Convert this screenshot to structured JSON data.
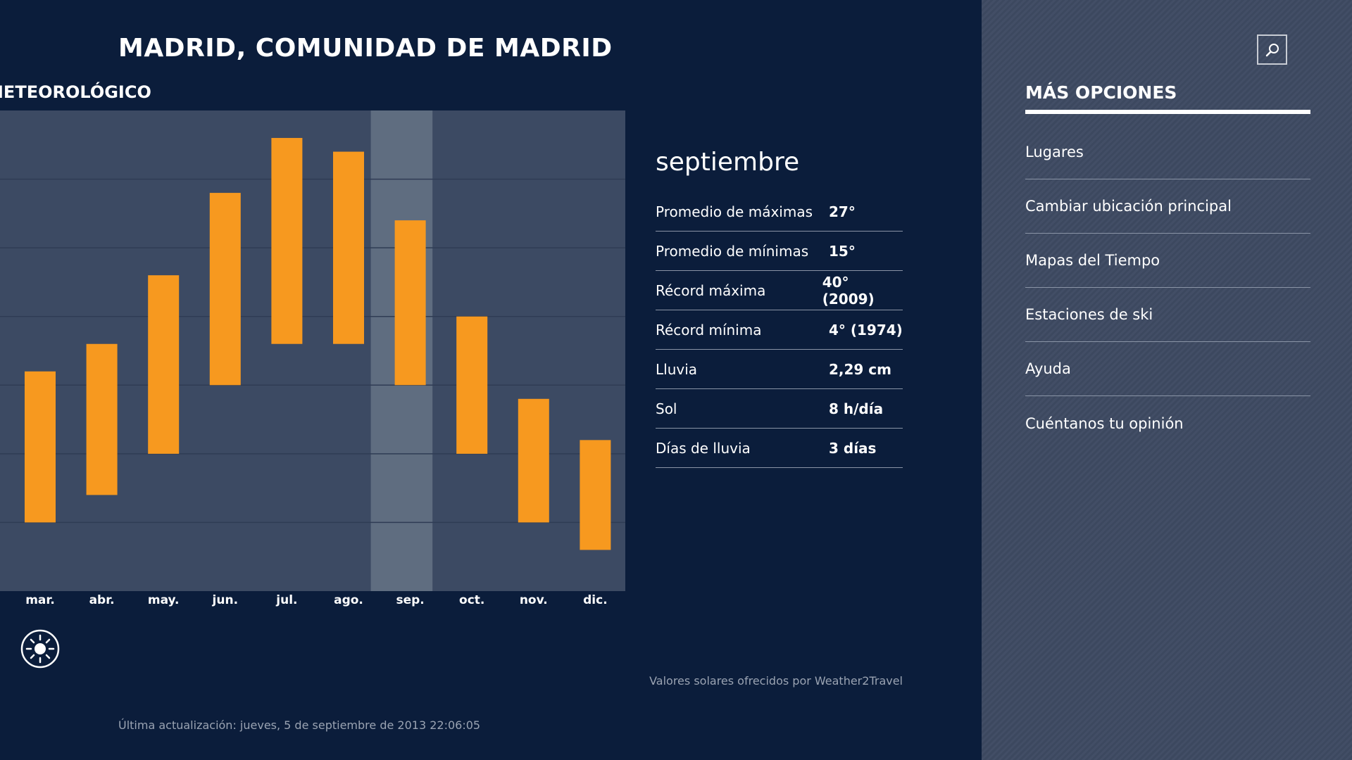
{
  "header": {
    "title": "MADRID, COMUNIDAD DE MADRID",
    "subtitle": "IETEOROLÓGICO"
  },
  "colors": {
    "background": "#0b1d3b",
    "chart_bg": "#3c4a63",
    "highlight": "#5f6d80",
    "bar": "#f7991f",
    "panel": "#3e4a62"
  },
  "chart_data": {
    "type": "bar",
    "subtype": "floating-range",
    "categories": [
      "mar.",
      "abr.",
      "may.",
      "jun.",
      "jul.",
      "ago.",
      "sep.",
      "oct.",
      "nov.",
      "dic."
    ],
    "series": [
      {
        "values_max": [
          16,
          18,
          23,
          29,
          33,
          32,
          27,
          20,
          14,
          11
        ],
        "values_min": [
          5,
          7,
          10,
          15,
          18,
          18,
          15,
          10,
          5,
          3
        ]
      }
    ],
    "ylim": [
      0,
      35
    ],
    "ygrid_step": 5,
    "grid": true,
    "highlighted": "sep.",
    "xlabel": "",
    "ylabel": ""
  },
  "detail": {
    "month": "septiembre",
    "rows": [
      {
        "label": "Promedio de máximas",
        "value": "27°"
      },
      {
        "label": "Promedio de mínimas",
        "value": "15°"
      },
      {
        "label": "Récord máxima",
        "value": "40° (2009)"
      },
      {
        "label": "Récord mínima",
        "value": "4° (1974)"
      },
      {
        "label": "Lluvia",
        "value": "2,29 cm"
      },
      {
        "label": "Sol",
        "value": "8 h/día"
      },
      {
        "label": "Días de lluvia",
        "value": "3 días"
      }
    ],
    "credit": "Valores solares ofrecidos por  Weather2Travel"
  },
  "footer": {
    "updated": "Última actualización: jueves, 5 de septiembre de 2013 22:06:05"
  },
  "icons": {
    "sun": "sun-icon",
    "search": "search-icon"
  },
  "panel": {
    "title": "MÁS OPCIONES",
    "items": [
      "Lugares",
      "Cambiar ubicación principal",
      "Mapas del Tiempo",
      "Estaciones de ski",
      "Ayuda",
      "Cuéntanos tu opinión"
    ]
  }
}
